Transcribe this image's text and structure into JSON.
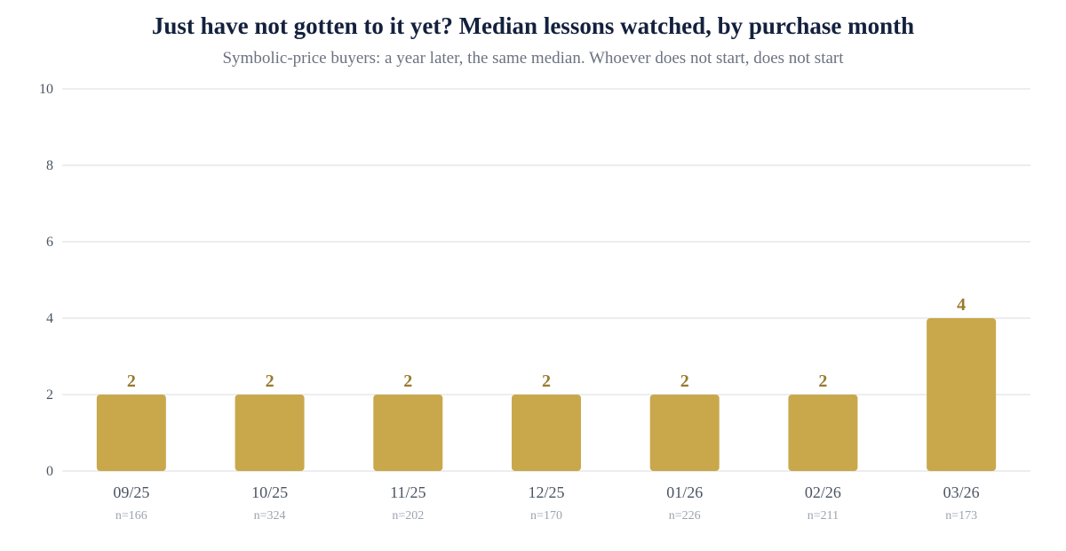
{
  "colors": {
    "bar": "#c9a84c",
    "value_label": "#9a7a2e",
    "title": "#14213d",
    "subtitle": "#6b7280",
    "grid": "#e5e7eb",
    "tick": "#4b5563",
    "sample": "#9ca3af"
  },
  "chart_data": {
    "type": "bar",
    "title": "Just have not gotten to it yet? Median lessons watched, by purchase month",
    "subtitle": "Symbolic-price buyers: a year later, the same median. Whoever does not start, does not start",
    "categories": [
      "09/25",
      "10/25",
      "11/25",
      "12/25",
      "01/26",
      "02/26",
      "03/26"
    ],
    "values": [
      2,
      2,
      2,
      2,
      2,
      2,
      4
    ],
    "sample_labels": [
      "n=166",
      "n=324",
      "n=202",
      "n=170",
      "n=226",
      "n=211",
      "n=173"
    ],
    "ylim": [
      0,
      10
    ],
    "yticks": [
      0,
      2,
      4,
      6,
      8,
      10
    ],
    "xlabel": "",
    "ylabel": "",
    "grid": true,
    "legend": "none"
  }
}
